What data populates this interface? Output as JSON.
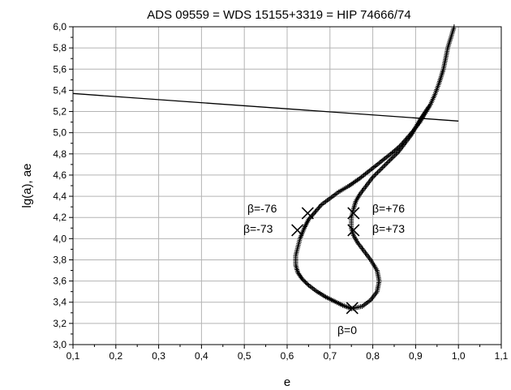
{
  "chart_data": {
    "type": "scatter",
    "title": "ADS 09559 = WDS 15155+3319 = HIP 74666/74",
    "xlabel": "e",
    "ylabel": "lg(a), ae",
    "xlim": [
      0.1,
      1.1
    ],
    "ylim": [
      3.0,
      6.0
    ],
    "xticks": [
      0.1,
      0.2,
      0.3,
      0.4,
      0.5,
      0.6,
      0.7,
      0.8,
      0.9,
      1.0,
      1.1
    ],
    "xtick_labels": [
      "0,1",
      "0,2",
      "0,3",
      "0,4",
      "0,5",
      "0,6",
      "0,7",
      "0,8",
      "0,9",
      "1,0",
      "1,1"
    ],
    "yticks": [
      3.0,
      3.2,
      3.4,
      3.6,
      3.8,
      4.0,
      4.2,
      4.4,
      4.6,
      4.8,
      5.0,
      5.2,
      5.4,
      5.6,
      5.8,
      6.0
    ],
    "ytick_labels": [
      "3,0",
      "3,2",
      "3,4",
      "3,6",
      "3,8",
      "4,0",
      "4,2",
      "4,4",
      "4,6",
      "4,8",
      "5,0",
      "5,2",
      "5,4",
      "5,6",
      "5,8",
      "6,0"
    ],
    "grid": true,
    "line": {
      "x": [
        0.1,
        1.0
      ],
      "y": [
        5.37,
        5.11
      ]
    },
    "curve": {
      "marker": "+",
      "left_branch": {
        "x": [
          0.99,
          0.975,
          0.965,
          0.955,
          0.945,
          0.935,
          0.925,
          0.91,
          0.895,
          0.88,
          0.865,
          0.845,
          0.82,
          0.795,
          0.77,
          0.745,
          0.72,
          0.7,
          0.68,
          0.665,
          0.65,
          0.64,
          0.63,
          0.625,
          0.62,
          0.62,
          0.625,
          0.635,
          0.65,
          0.67,
          0.69,
          0.71,
          0.73,
          0.75
        ],
        "y": [
          6.0,
          5.8,
          5.6,
          5.47,
          5.36,
          5.27,
          5.2,
          5.1,
          5.02,
          4.95,
          4.88,
          4.81,
          4.73,
          4.65,
          4.57,
          4.5,
          4.44,
          4.38,
          4.32,
          4.25,
          4.18,
          4.1,
          4.0,
          3.92,
          3.84,
          3.75,
          3.68,
          3.62,
          3.56,
          3.5,
          3.45,
          3.41,
          3.37,
          3.34
        ]
      },
      "right_branch": {
        "x": [
          0.75,
          0.775,
          0.795,
          0.81,
          0.815,
          0.81,
          0.795,
          0.78,
          0.765,
          0.755,
          0.75,
          0.75,
          0.755,
          0.76,
          0.77,
          0.785,
          0.8,
          0.82,
          0.84,
          0.86,
          0.875,
          0.89,
          0.9,
          0.91,
          0.92,
          0.93
        ],
        "y": [
          3.34,
          3.36,
          3.42,
          3.5,
          3.6,
          3.7,
          3.8,
          3.88,
          3.96,
          4.03,
          4.1,
          4.2,
          4.28,
          4.35,
          4.42,
          4.5,
          4.58,
          4.66,
          4.74,
          4.82,
          4.9,
          4.98,
          5.05,
          5.12,
          5.18,
          5.24
        ]
      }
    },
    "special_points": [
      {
        "label": "β=-76",
        "x": 0.648,
        "y": 4.24
      },
      {
        "label": "β=-73",
        "x": 0.624,
        "y": 4.08
      },
      {
        "label": "β=+76",
        "x": 0.755,
        "y": 4.24
      },
      {
        "label": "β=+73",
        "x": 0.755,
        "y": 4.08
      },
      {
        "label": "β=0",
        "x": 0.752,
        "y": 3.345
      }
    ]
  }
}
